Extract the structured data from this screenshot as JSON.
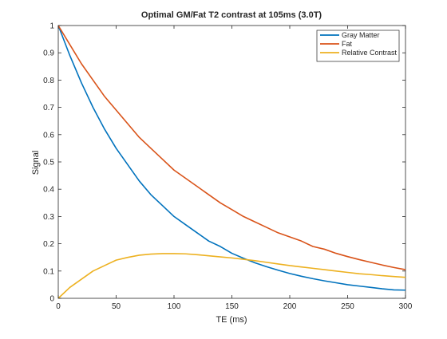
{
  "chart_data": {
    "type": "line",
    "title": "Optimal GM/Fat T2 contrast at 105ms (3.0T)",
    "xlabel": "TE (ms)",
    "ylabel": "Signal",
    "xlim": [
      0,
      300
    ],
    "ylim": [
      0,
      1
    ],
    "xticks": [
      0,
      50,
      100,
      150,
      200,
      250,
      300
    ],
    "yticks": [
      0,
      0.1,
      0.2,
      0.3,
      0.4,
      0.5,
      0.6,
      0.7,
      0.8,
      0.9,
      1
    ],
    "grid": false,
    "legend_position": "top-right",
    "x": [
      0,
      10,
      20,
      30,
      40,
      50,
      60,
      70,
      80,
      90,
      100,
      110,
      120,
      130,
      140,
      150,
      160,
      170,
      180,
      190,
      200,
      210,
      220,
      230,
      240,
      250,
      260,
      270,
      280,
      290,
      300
    ],
    "series": [
      {
        "name": "Gray Matter",
        "color": "#0072bd",
        "values": [
          1.0,
          0.89,
          0.79,
          0.7,
          0.62,
          0.55,
          0.49,
          0.43,
          0.38,
          0.34,
          0.3,
          0.27,
          0.24,
          0.21,
          0.19,
          0.165,
          0.147,
          0.13,
          0.116,
          0.103,
          0.091,
          0.081,
          0.072,
          0.064,
          0.057,
          0.05,
          0.045,
          0.04,
          0.035,
          0.031,
          0.03
        ]
      },
      {
        "name": "Fat",
        "color": "#d95319",
        "values": [
          1.0,
          0.93,
          0.86,
          0.8,
          0.74,
          0.69,
          0.64,
          0.59,
          0.55,
          0.51,
          0.47,
          0.44,
          0.41,
          0.38,
          0.35,
          0.325,
          0.3,
          0.28,
          0.26,
          0.24,
          0.225,
          0.21,
          0.19,
          0.18,
          0.165,
          0.153,
          0.142,
          0.132,
          0.122,
          0.113,
          0.105
        ]
      },
      {
        "name": "Relative Contrast",
        "color": "#edb120",
        "values": [
          0.0,
          0.04,
          0.07,
          0.1,
          0.12,
          0.14,
          0.15,
          0.158,
          0.162,
          0.164,
          0.164,
          0.163,
          0.16,
          0.156,
          0.152,
          0.148,
          0.143,
          0.138,
          0.132,
          0.126,
          0.12,
          0.115,
          0.11,
          0.105,
          0.1,
          0.095,
          0.09,
          0.087,
          0.083,
          0.08,
          0.077
        ]
      }
    ]
  }
}
